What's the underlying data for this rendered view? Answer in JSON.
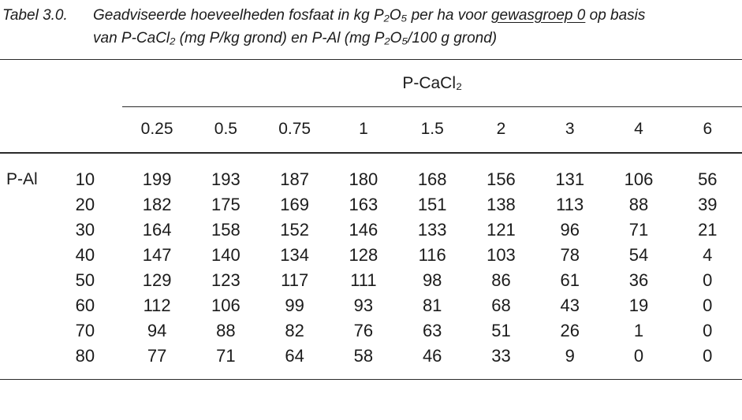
{
  "page": {
    "background": "#ffffff",
    "text_color": "#1b1b1b",
    "rule_color": "#2a2a2a"
  },
  "caption": {
    "label": "Tabel 3.0.",
    "line1_pre": "Geadviseerde hoeveelheden fosfaat in kg P₂O₅ per ha voor ",
    "line1_underlined": "gewasgroep 0",
    "line1_post": " op basis",
    "line2": "van P-CaCl₂ (mg P/kg grond) en P-Al (mg P₂O₅/100 g grond)"
  },
  "table": {
    "column_group_header": "P-CaCl₂",
    "row_group_header": "P-Al",
    "column_headers": [
      "0.25",
      "0.5",
      "0.75",
      "1",
      "1.5",
      "2",
      "3",
      "4",
      "6"
    ],
    "rows": [
      {
        "key": "10",
        "values": [
          "199",
          "193",
          "187",
          "180",
          "168",
          "156",
          "131",
          "106",
          "56"
        ]
      },
      {
        "key": "20",
        "values": [
          "182",
          "175",
          "169",
          "163",
          "151",
          "138",
          "113",
          "88",
          "39"
        ]
      },
      {
        "key": "30",
        "values": [
          "164",
          "158",
          "152",
          "146",
          "133",
          "121",
          "96",
          "71",
          "21"
        ]
      },
      {
        "key": "40",
        "values": [
          "147",
          "140",
          "134",
          "128",
          "116",
          "103",
          "78",
          "54",
          "4"
        ]
      },
      {
        "key": "50",
        "values": [
          "129",
          "123",
          "117",
          "111",
          "98",
          "86",
          "61",
          "36",
          "0"
        ]
      },
      {
        "key": "60",
        "values": [
          "112",
          "106",
          "99",
          "93",
          "81",
          "68",
          "43",
          "19",
          "0"
        ]
      },
      {
        "key": "70",
        "values": [
          "94",
          "88",
          "82",
          "76",
          "63",
          "51",
          "26",
          "1",
          "0"
        ]
      },
      {
        "key": "80",
        "values": [
          "77",
          "71",
          "64",
          "58",
          "46",
          "33",
          "9",
          "0",
          "0"
        ]
      }
    ]
  }
}
